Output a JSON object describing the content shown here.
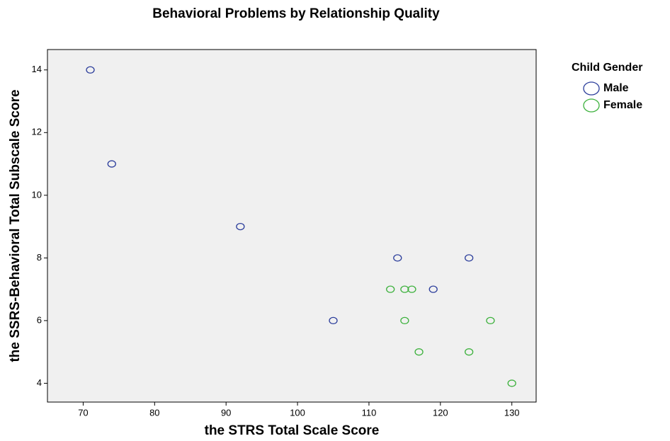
{
  "chart_data": {
    "type": "scatter",
    "title": "Behavioral Problems by Relationship Quality",
    "x_label": "the STRS Total Scale Score",
    "y_label": "the SSRS-Behavioral Total Subscale Score",
    "legend_title": "Child Gender",
    "legend": "right",
    "background": "#f0f0f0",
    "xlim": [
      65,
      133.4
    ],
    "xticks": [
      70,
      80,
      90,
      100,
      110,
      120,
      130
    ],
    "ylim": [
      3.4,
      14.65
    ],
    "yticks": [
      4,
      6,
      8,
      10,
      12,
      14
    ],
    "series": [
      {
        "name": "Male",
        "color": "#2b3d9b",
        "x": [
          71,
          74,
          92,
          105,
          114,
          119,
          124
        ],
        "values": [
          14,
          11,
          9,
          6,
          8,
          7,
          8
        ]
      },
      {
        "name": "Female",
        "color": "#3cb13c",
        "x": [
          113,
          115,
          116,
          115,
          117,
          124,
          127,
          130
        ],
        "values": [
          7,
          7,
          7,
          6,
          5,
          5,
          6,
          4
        ]
      }
    ]
  }
}
